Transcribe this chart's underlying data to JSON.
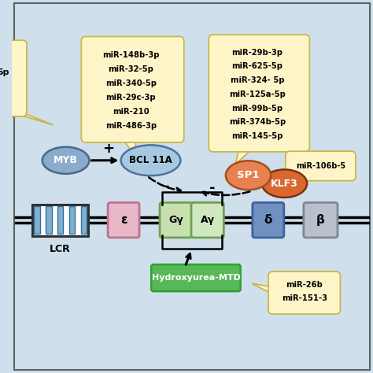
{
  "bg_color": "#cfe0ec",
  "fig_bg": "#cfe0ec",
  "bubble_color": "#fdf5c8",
  "bubble_edge": "#c8b84a",
  "myb_color": "#8aabcc",
  "bcl_color": "#a8c8e0",
  "sp1_color": "#e88050",
  "klf3_color": "#d86830",
  "lcr_color": "#80b0d0",
  "epsilon_color": "#e8b8c8",
  "gy_color": "#c8e0b0",
  "ay_color": "#d0e8c0",
  "delta_color": "#7090c0",
  "beta_color": "#b8c0cc",
  "hydro_color": "#58b858",
  "left_bubble_lines": [
    "5p"
  ],
  "bcl_bubble_lines": [
    "miR-148b-3p",
    "miR-32-5p",
    "miR-340-5p",
    "miR-29c-3p",
    "miR-210",
    "miR-486-3p"
  ],
  "sp1_bubble_lines": [
    "miR-29b-3p",
    "miR-625-5p",
    "miR-324- 5p",
    "miR-125a-5p",
    "miR-99b-5p",
    "miR-374b-5p",
    "miR-145-5p"
  ],
  "mir106_text": "miR-106b-5",
  "mir26_lines": [
    "miR-26b",
    "miR-151-3"
  ],
  "hydro_text": "Hydroxyurea-MTD",
  "lcr_text": "LCR",
  "epsilon_text": "ε",
  "gy_text": "Gγ",
  "ay_text": "Aγ",
  "delta_text": "δ",
  "beta_text": "β",
  "myb_text": "MYB",
  "bcl_text": "BCL 11A",
  "sp1_text": "SP1",
  "klf3_text": "KLF3",
  "plus_text": "+",
  "minus1_text": "-",
  "minus2_text": "-"
}
